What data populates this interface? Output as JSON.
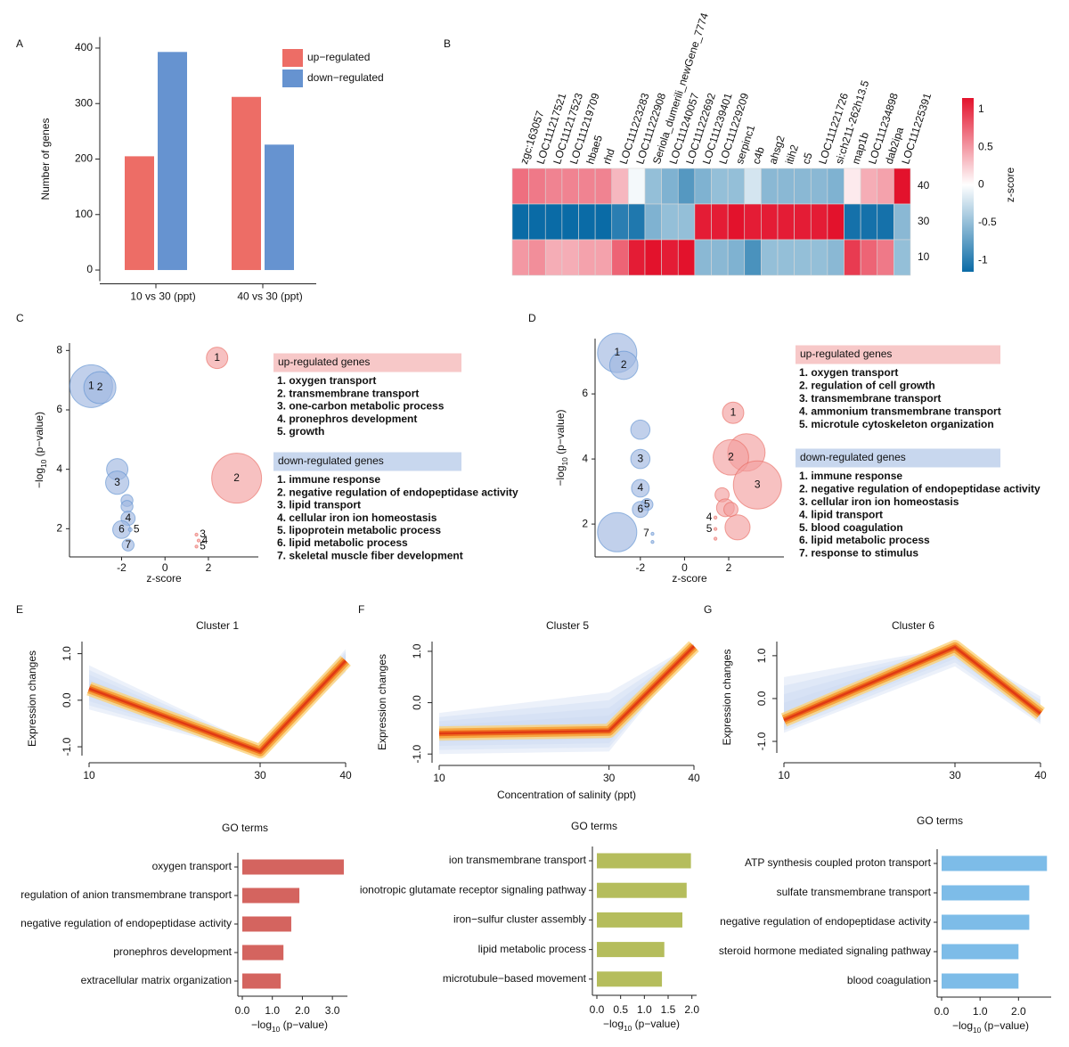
{
  "chart_data": [
    {
      "type": "bar",
      "panel": "A",
      "ylabel": "Number of  genes",
      "categories": [
        "10 vs 30 (ppt)",
        "40 vs 30 (ppt)"
      ],
      "series": [
        {
          "name": "up−regulated",
          "color": "#ed6d66",
          "values": [
            205,
            312
          ]
        },
        {
          "name": "down−regulated",
          "color": "#6693d0",
          "values": [
            393,
            226
          ]
        }
      ],
      "ylim": [
        -20,
        420
      ],
      "yticks": [
        0,
        100,
        200,
        300,
        400
      ]
    },
    {
      "type": "heatmap",
      "panel": "B",
      "columns": [
        "zgc:163057",
        "LOC111217521",
        "LOC111217523",
        "LOC111219709",
        "hbae5",
        "rhd",
        "LOC111223283",
        "LOC111222908",
        "Seriola_dumerili_newGene_7774",
        "LOC111240057",
        "LOC111222692",
        "LOC111239401",
        "LOC111229209",
        "serpinc1",
        "c4b",
        "ahsg2",
        "itih2",
        "c5",
        "LOC111221726",
        "si:ch211-262h13.5",
        "map1b",
        "LOC111234898",
        "dab2ipa",
        "LOC111225391"
      ],
      "rows": [
        "40",
        "30",
        "10"
      ],
      "values": [
        [
          0.7,
          0.65,
          0.6,
          0.6,
          0.6,
          0.6,
          0.35,
          -0.05,
          -0.5,
          -0.6,
          -0.8,
          -0.6,
          -0.5,
          -0.5,
          -0.2,
          -0.55,
          -0.55,
          -0.55,
          -0.55,
          -0.6,
          0.1,
          0.4,
          0.45,
          1.15
        ],
        [
          -1.15,
          -1.15,
          -1.15,
          -1.15,
          -1.15,
          -1.15,
          -1.0,
          -1.05,
          -0.6,
          -0.5,
          -0.5,
          1.1,
          1.1,
          1.15,
          1.1,
          1.1,
          1.1,
          1.1,
          1.1,
          1.15,
          -1.1,
          -1.1,
          -1.1,
          -0.55
        ],
        [
          0.5,
          0.55,
          0.4,
          0.4,
          0.45,
          0.45,
          0.75,
          1.1,
          1.15,
          1.1,
          1.15,
          -0.55,
          -0.55,
          -0.6,
          -0.85,
          -0.5,
          -0.5,
          -0.5,
          -0.5,
          -0.55,
          0.95,
          0.75,
          0.65,
          -0.5
        ]
      ],
      "colors": [
        "#0a6ba6",
        "#ffffff",
        "#e3122c"
      ],
      "clim": [
        -1.15,
        1.15
      ],
      "cticks": [
        -1,
        -0.5,
        0,
        0.5,
        1
      ],
      "clabel": "z-score"
    },
    {
      "type": "bubble",
      "panel": "C",
      "xlabel": "z-score",
      "ylabel": [
        "−log",
        "10",
        " (p−value)"
      ],
      "xlim": [
        -4.4,
        4.3
      ],
      "ylim": [
        1.05,
        8.25
      ],
      "xticks": [
        -2,
        0,
        2
      ],
      "yticks": [
        2,
        4,
        6,
        8
      ],
      "series": [
        {
          "name": "up-regulated genes",
          "color": "#f2a0a0",
          "text_color": "#e8665c",
          "header_color": "#f7c8c8",
          "terms": [
            "1. oxygen transport",
            "2. transmembrane transport",
            "3. one-carbon metabolic process",
            "4. pronephros development",
            "5. growth"
          ],
          "x": [
            2.4,
            3.3,
            1.45,
            1.55,
            1.45
          ],
          "values": [
            7.75,
            3.7,
            1.8,
            1.6,
            1.4
          ],
          "sizes": [
            16,
            87,
            0.3,
            0.3,
            0.3
          ],
          "labels": [
            "1",
            "2",
            "3",
            "4",
            "5"
          ]
        },
        {
          "name": "down-regulated genes",
          "color": "#9fb7e0",
          "text_color": "#5b8fd1",
          "header_color": "#c8d7ee",
          "terms": [
            "1. immune response",
            "2. negative regulation of endopeptidase activity",
            "3. lipid transport",
            "4. cellular iron ion homeostasis",
            "5. lipoprotein metabolic process",
            "6. lipid metabolic process",
            "7. skeletal muscle fiber development"
          ],
          "x": [
            -3.4,
            -3.0,
            -2.2,
            -2.2,
            -1.75,
            -1.75,
            -1.7,
            -2.0,
            -1.6,
            -1.7
          ],
          "values": [
            6.8,
            6.75,
            4.0,
            3.55,
            2.95,
            2.75,
            2.35,
            1.97,
            1.97,
            1.45
          ],
          "sizes": [
            64,
            36,
            16,
            19,
            5,
            5,
            7,
            11,
            0.5,
            5
          ],
          "labels": [
            "1",
            "2",
            null,
            "3",
            null,
            null,
            "4",
            "6",
            "5",
            "7"
          ]
        }
      ]
    },
    {
      "type": "bubble",
      "panel": "D",
      "xlabel": "z-score",
      "ylabel": [
        "−log",
        "10",
        " (p−value)"
      ],
      "xlim": [
        -4.05,
        4.5
      ],
      "ylim": [
        0.99,
        7.7
      ],
      "xticks": [
        -2,
        0,
        2
      ],
      "yticks": [
        2,
        4,
        6
      ],
      "series": [
        {
          "name": "up-regulated genes",
          "color": "#f2a0a0",
          "text_color": "#e8665c",
          "header_color": "#f7c8c8",
          "terms": [
            "1. oxygen transport",
            "2. regulation of cell growth",
            "3. transmembrane transport",
            "4. ammonium transmembrane transport",
            "5. microtule cytoskeleton organization"
          ],
          "x": [
            2.2,
            2.8,
            2.1,
            3.3,
            1.7,
            1.85,
            2.1,
            2.4,
            1.4,
            1.4,
            1.4
          ],
          "values": [
            5.42,
            4.2,
            4.05,
            3.2,
            2.9,
            2.5,
            2.45,
            1.9,
            2.2,
            1.85,
            1.55
          ],
          "sizes": [
            16,
            49,
            44,
            81,
            7,
            11,
            7,
            22,
            0.3,
            0.3,
            0.3
          ],
          "labels": [
            "1",
            null,
            "2",
            "3",
            null,
            null,
            null,
            null,
            "4",
            "5",
            null
          ]
        },
        {
          "name": "down-regulated genes",
          "color": "#9fb7e0",
          "text_color": "#5b8fd1",
          "header_color": "#c8d7ee",
          "terms": [
            "1. immune response",
            "2. negative regulation of endopeptidase activity",
            "3. cellular iron ion homeostasis",
            "4. lipid transport",
            "5. blood coagulation",
            "6. lipid metabolic process",
            "7. response to stimulus"
          ],
          "x": [
            -3.05,
            -2.75,
            -2.0,
            -2.0,
            -2.0,
            -1.7,
            -2.0,
            -3.05,
            -1.45,
            -1.45
          ],
          "values": [
            7.26,
            6.88,
            4.9,
            4.0,
            3.1,
            2.6,
            2.45,
            1.75,
            1.7,
            1.45
          ],
          "sizes": [
            54,
            28,
            13,
            13,
            11,
            5,
            9,
            54,
            0.3,
            0.3
          ],
          "labels": [
            "1",
            "2",
            null,
            "3",
            "4",
            "5",
            "6",
            null,
            "7",
            null
          ]
        }
      ]
    },
    {
      "type": "line",
      "panel": "E",
      "title": "Cluster 1",
      "ylabel": "Expression changes",
      "color": "#e03a14",
      "band_color": "#c9d8f0",
      "x": [
        10,
        30,
        40
      ],
      "values": [
        0.25,
        -1.1,
        0.85
      ],
      "upper": [
        0.75,
        -1.0,
        1.1
      ],
      "lower": [
        -0.2,
        -1.15,
        0.6
      ],
      "xlim": [
        10,
        40
      ],
      "xticks": [
        10,
        30,
        40
      ],
      "ylim": [
        -1.19,
        1.26
      ],
      "yticks": [
        {
          "value": -1,
          "label": "-1.0"
        },
        {
          "value": 0,
          "label": "0.0"
        },
        {
          "value": 1,
          "label": "1.0"
        }
      ]
    },
    {
      "type": "barh",
      "title": "GO terms",
      "color": "#d4645f",
      "xlabel": [
        "−log",
        "10",
        " (p−value)"
      ],
      "categories": [
        "oxygen transport",
        "regulation of anion transmembrane transport",
        "negative regulation of endopeptidase activity",
        "pronephros development",
        "extracellular matrix organization"
      ],
      "values": [
        3.38,
        1.9,
        1.63,
        1.37,
        1.28
      ],
      "xlim": [
        0,
        3.5
      ],
      "xticks": [
        {
          "value": 0,
          "label": "0.0"
        },
        {
          "value": 1,
          "label": "1.0"
        },
        {
          "value": 2,
          "label": "2.0"
        },
        {
          "value": 3,
          "label": "3.0"
        }
      ]
    },
    {
      "type": "line",
      "panel": "F",
      "title": "Cluster 5",
      "ylabel": "Expression changes",
      "xlabel": "Concentration of salinity (ppt)",
      "color": "#e03a14",
      "band_color": "#c9d8f0",
      "x": [
        10,
        30,
        40
      ],
      "values": [
        -0.6,
        -0.55,
        1.1
      ],
      "upper": [
        -0.2,
        0.2,
        1.15
      ],
      "lower": [
        -1.0,
        -0.95,
        1.1
      ],
      "xlim": [
        10,
        40
      ],
      "xticks": [
        10,
        30,
        40
      ],
      "ylim": [
        -1.17,
        1.19
      ],
      "yticks": [
        {
          "value": -1,
          "label": "-1.0"
        },
        {
          "value": 0,
          "label": "0.0"
        },
        {
          "value": 1,
          "label": "1.0"
        }
      ]
    },
    {
      "type": "barh",
      "title": "GO terms",
      "color": "#b5bd5c",
      "xlabel": [
        "−log",
        "10",
        " (p−value)"
      ],
      "categories": [
        "ion transmembrane transport",
        "ionotropic glutamate receptor signaling pathway",
        "iron−sulfur cluster assembly",
        "lipid metabolic process",
        "microtubule−based movement"
      ],
      "values": [
        1.98,
        1.89,
        1.8,
        1.42,
        1.37
      ],
      "xlim": [
        0,
        2.1
      ],
      "xticks": [
        {
          "value": 0,
          "label": "0.0"
        },
        {
          "value": 0.5,
          "label": "0.5"
        },
        {
          "value": 1,
          "label": "1.0"
        },
        {
          "value": 1.5,
          "label": "1.5"
        },
        {
          "value": 2,
          "label": "2.0"
        }
      ]
    },
    {
      "type": "line",
      "panel": "G",
      "title": "Cluster 6",
      "ylabel": "Expression changes",
      "color": "#e03a14",
      "band_color": "#c9d8f0",
      "x": [
        10,
        30,
        40
      ],
      "values": [
        -0.5,
        1.2,
        -0.35
      ],
      "upper": [
        0.5,
        1.2,
        0.05
      ],
      "lower": [
        -0.8,
        0.75,
        -0.6
      ],
      "xlim": [
        10,
        40
      ],
      "xticks": [
        10,
        30,
        40
      ],
      "ylim": [
        -1.27,
        1.33
      ],
      "yticks": [
        {
          "value": -1,
          "label": "-1.0"
        },
        {
          "value": 0,
          "label": "0.0"
        },
        {
          "value": 1,
          "label": "1.0"
        }
      ]
    },
    {
      "type": "barh",
      "title": "GO terms",
      "color": "#7dbce8",
      "xlabel": [
        "−log",
        "10",
        " (p−value)"
      ],
      "categories": [
        "ATP synthesis coupled proton transport",
        "sulfate transmembrane transport",
        "negative regulation of endopeptidase activity",
        "steroid hormone mediated signaling pathway",
        "blood coagulation"
      ],
      "values": [
        2.74,
        2.28,
        2.28,
        2.0,
        2.0
      ],
      "xlim": [
        0,
        2.85
      ],
      "xticks": [
        {
          "value": 0,
          "label": "0.0"
        },
        {
          "value": 1,
          "label": "1.0"
        },
        {
          "value": 2,
          "label": "2.0"
        }
      ]
    }
  ]
}
